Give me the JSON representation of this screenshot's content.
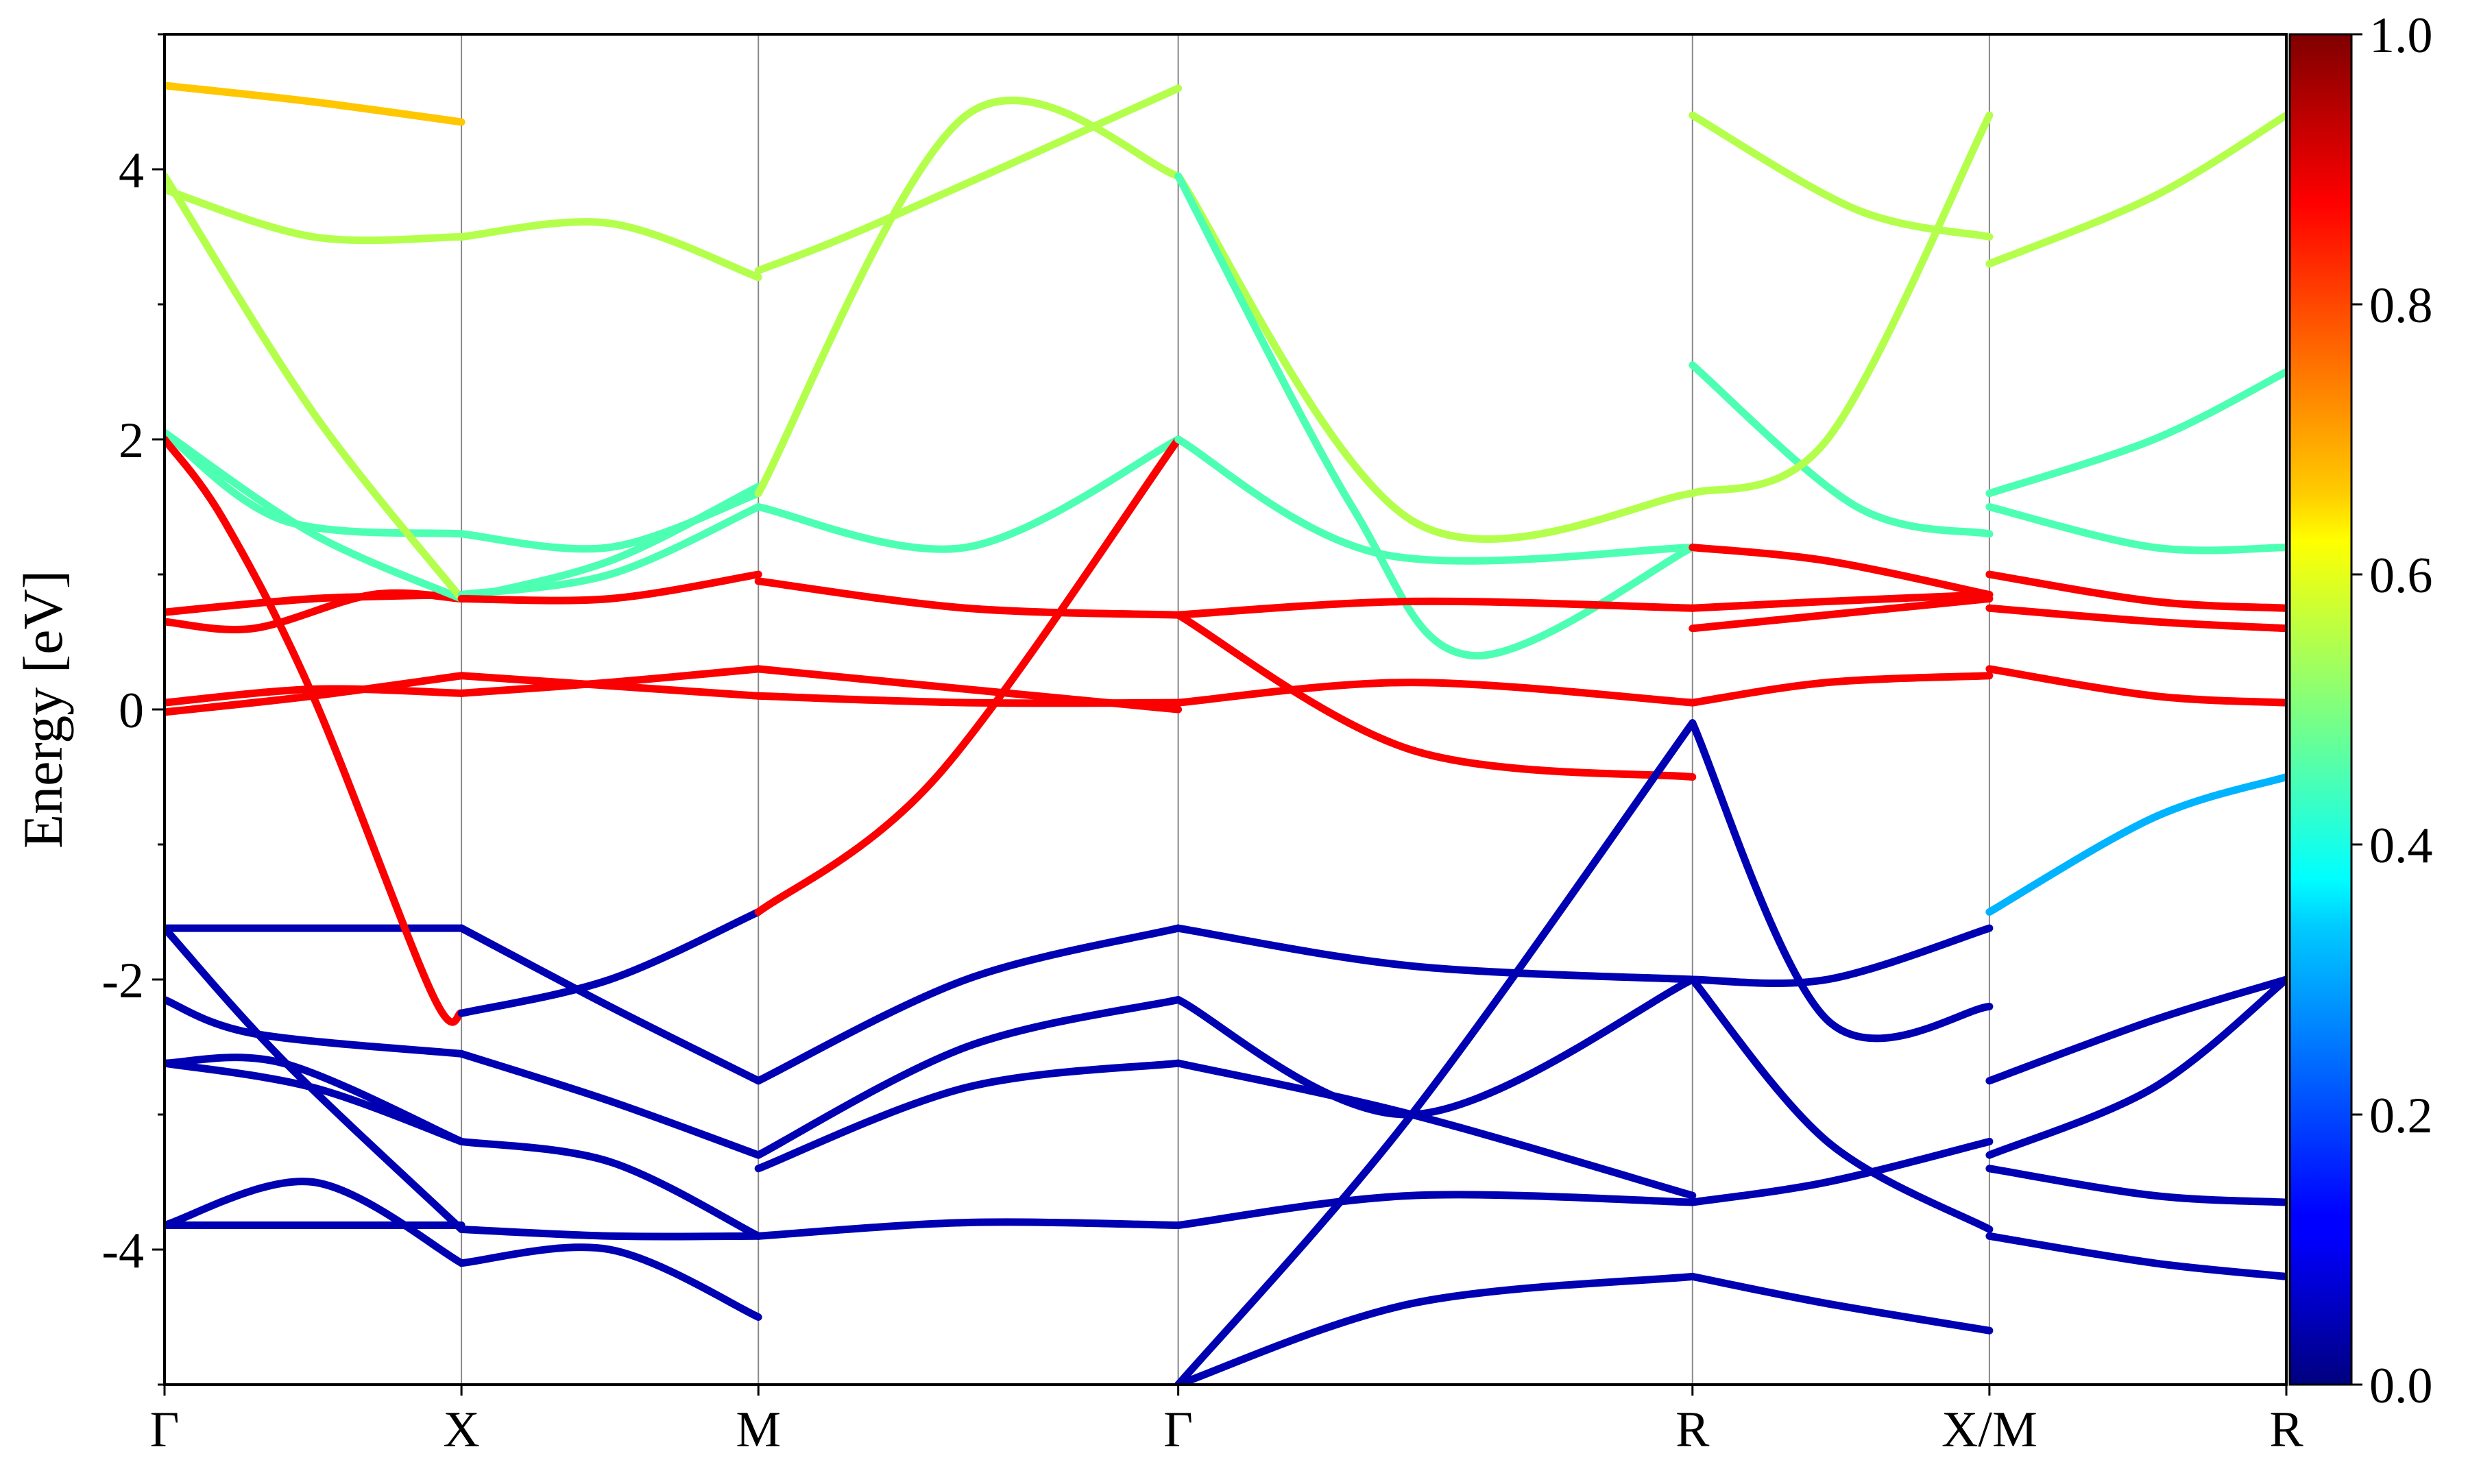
{
  "chart_data": {
    "type": "line",
    "title": "",
    "xlabel": "",
    "ylabel": "Energy [eV]",
    "ylim": [
      -5,
      5
    ],
    "y_ticks": [
      -4,
      -2,
      0,
      2,
      4
    ],
    "y_tick_labels": [
      "-4",
      "-2",
      "0",
      "2",
      "4"
    ],
    "x_path": {
      "labels": [
        "Γ",
        "X",
        "M",
        "Γ",
        "R",
        "X/M",
        "R"
      ],
      "positions": [
        0,
        0.5,
        1.0,
        1.707,
        2.573,
        3.073,
        3.573
      ]
    },
    "vertical_grid": true,
    "colorbar": {
      "colormap": "jet",
      "range": [
        0,
        1
      ],
      "ticks": [
        0.0,
        0.2,
        0.4,
        0.6,
        0.8,
        1.0
      ],
      "tick_labels": [
        "0.0",
        "0.2",
        "0.4",
        "0.6",
        "0.8",
        "1.0"
      ]
    },
    "series": [
      {
        "segment": "Γ-X",
        "x": [
          0,
          0.5
        ],
        "y": [
          -3.82,
          -3.82
        ]
      },
      {
        "segment": "Γ-X",
        "x": [
          0,
          0.25,
          0.5
        ],
        "y": [
          -3.82,
          -3.5,
          -4.1
        ]
      },
      {
        "segment": "Γ-X",
        "x": [
          0,
          0.2,
          0.5
        ],
        "y": [
          -2.62,
          -2.62,
          -3.2
        ]
      },
      {
        "segment": "Γ-X",
        "x": [
          0,
          0.25,
          0.5
        ],
        "y": [
          -2.62,
          -2.8,
          -3.2
        ]
      },
      {
        "segment": "Γ-X",
        "x": [
          0,
          0.15,
          0.5
        ],
        "y": [
          -2.15,
          -2.4,
          -2.55
        ]
      },
      {
        "segment": "Γ-X",
        "x": [
          0,
          0.5
        ],
        "y": [
          -1.62,
          -1.62
        ]
      },
      {
        "segment": "Γ-X",
        "x": [
          0,
          0.2,
          0.5
        ],
        "y": [
          -1.62,
          -2.6,
          -3.85
        ]
      },
      {
        "segment": "Γ-X",
        "x": [
          0,
          0.15,
          0.35,
          0.5
        ],
        "y": [
          0.65,
          0.6,
          0.85,
          0.82
        ]
      },
      {
        "segment": "Γ-X",
        "x": [
          0,
          0.25,
          0.5
        ],
        "y": [
          0.72,
          0.82,
          0.85
        ]
      },
      {
        "segment": "Γ-X",
        "x": [
          0,
          0.25,
          0.5
        ],
        "y": [
          0.05,
          0.15,
          0.12
        ]
      },
      {
        "segment": "Γ-X",
        "x": [
          0,
          0.25,
          0.5
        ],
        "y": [
          -0.02,
          0.1,
          0.25
        ]
      },
      {
        "segment": "Γ-X",
        "x": [
          0,
          0.2,
          0.5
        ],
        "y": [
          2.05,
          1.4,
          1.3
        ]
      },
      {
        "segment": "Γ-X",
        "x": [
          0,
          0.25,
          0.5
        ],
        "y": [
          2.05,
          1.3,
          0.82
        ]
      },
      {
        "segment": "Γ-X",
        "x": [
          0,
          0.25,
          0.5
        ],
        "y": [
          3.95,
          2.2,
          0.82
        ]
      },
      {
        "segment": "Γ-X",
        "x": [
          0,
          0.1,
          0.25,
          0.45,
          0.5
        ],
        "y": [
          2.0,
          1.4,
          0.1,
          -2.1,
          -2.25
        ]
      },
      {
        "segment": "Γ-X",
        "x": [
          0,
          0.25,
          0.5
        ],
        "y": [
          4.62,
          4.5,
          4.35
        ]
      },
      {
        "segment": "Γ-X",
        "x": [
          0,
          0.25,
          0.5
        ],
        "y": [
          3.85,
          3.5,
          3.5
        ]
      },
      {
        "segment": "X-M",
        "x": [
          0.5,
          0.75,
          1.0
        ],
        "y": [
          3.5,
          3.6,
          3.2
        ]
      },
      {
        "segment": "X-M",
        "x": [
          0.5,
          0.75,
          1.0
        ],
        "y": [
          1.3,
          1.2,
          1.6
        ]
      },
      {
        "segment": "X-M",
        "x": [
          0.5,
          0.75,
          1.0
        ],
        "y": [
          0.82,
          1.1,
          1.65
        ]
      },
      {
        "segment": "X-M",
        "x": [
          0.5,
          0.75,
          1.0
        ],
        "y": [
          0.85,
          1.0,
          1.5
        ]
      },
      {
        "segment": "X-M",
        "x": [
          0.5,
          0.75,
          1.0
        ],
        "y": [
          0.82,
          0.82,
          1.0
        ]
      },
      {
        "segment": "X-M",
        "x": [
          0.5,
          0.75,
          1.0
        ],
        "y": [
          0.12,
          0.2,
          0.3
        ]
      },
      {
        "segment": "X-M",
        "x": [
          0.5,
          1.0
        ],
        "y": [
          0.25,
          0.1
        ]
      },
      {
        "segment": "X-M",
        "x": [
          0.5,
          0.75,
          1.0
        ],
        "y": [
          -2.25,
          -2.0,
          -1.5
        ]
      },
      {
        "segment": "X-M",
        "x": [
          0.5,
          0.75,
          1.0
        ],
        "y": [
          -1.62,
          -2.2,
          -2.75
        ]
      },
      {
        "segment": "X-M",
        "x": [
          0.5,
          0.75,
          1.0
        ],
        "y": [
          -2.55,
          -2.9,
          -3.3
        ]
      },
      {
        "segment": "X-M",
        "x": [
          0.5,
          0.75,
          1.0
        ],
        "y": [
          -3.2,
          -3.35,
          -3.9
        ]
      },
      {
        "segment": "X-M",
        "x": [
          0.5,
          0.75,
          1.0
        ],
        "y": [
          -3.85,
          -3.9,
          -3.9
        ]
      },
      {
        "segment": "X-M",
        "x": [
          0.5,
          0.75,
          1.0
        ],
        "y": [
          -4.1,
          -4.0,
          -4.5
        ]
      },
      {
        "segment": "M-Γ",
        "x": [
          1.0,
          1.2,
          1.707
        ],
        "y": [
          3.25,
          3.6,
          4.6
        ]
      },
      {
        "segment": "M-Γ",
        "x": [
          1.0,
          1.35,
          1.707
        ],
        "y": [
          1.6,
          4.4,
          3.95
        ]
      },
      {
        "segment": "M-Γ",
        "x": [
          1.0,
          1.35,
          1.707
        ],
        "y": [
          1.5,
          1.2,
          2.0
        ]
      },
      {
        "segment": "M-Γ",
        "x": [
          1.0,
          1.35,
          1.707
        ],
        "y": [
          0.95,
          0.75,
          0.7
        ]
      },
      {
        "segment": "M-Γ",
        "x": [
          1.0,
          1.35,
          1.707
        ],
        "y": [
          0.1,
          0.05,
          0.05
        ]
      },
      {
        "segment": "M-Γ",
        "x": [
          1.0,
          1.35,
          1.707
        ],
        "y": [
          0.3,
          0.15,
          0.0
        ]
      },
      {
        "segment": "M-Γ",
        "x": [
          1.0,
          1.3,
          1.707
        ],
        "y": [
          -1.5,
          -0.5,
          2.0
        ]
      },
      {
        "segment": "M-Γ",
        "x": [
          1.0,
          1.35,
          1.707
        ],
        "y": [
          -2.75,
          -2.0,
          -1.62
        ]
      },
      {
        "segment": "M-Γ",
        "x": [
          1.0,
          1.35,
          1.707
        ],
        "y": [
          -3.3,
          -2.5,
          -2.15
        ]
      },
      {
        "segment": "M-Γ",
        "x": [
          1.0,
          1.35,
          1.707
        ],
        "y": [
          -3.4,
          -2.8,
          -2.62
        ]
      },
      {
        "segment": "M-Γ",
        "x": [
          1.0,
          1.35,
          1.707
        ],
        "y": [
          -3.9,
          -3.8,
          -3.82
        ]
      },
      {
        "segment": "Γ-R",
        "x": [
          1.707,
          2.1,
          2.573
        ],
        "y": [
          3.95,
          1.4,
          1.6
        ]
      },
      {
        "segment": "Γ-R",
        "x": [
          1.707,
          2.0,
          2.2,
          2.573
        ],
        "y": [
          3.95,
          1.5,
          0.4,
          1.2
        ]
      },
      {
        "segment": "Γ-R",
        "x": [
          1.707,
          2.05,
          2.573
        ],
        "y": [
          2.0,
          1.15,
          1.2
        ]
      },
      {
        "segment": "Γ-R",
        "x": [
          1.707,
          2.1,
          2.573
        ],
        "y": [
          0.7,
          0.8,
          0.75
        ]
      },
      {
        "segment": "Γ-R",
        "x": [
          1.707,
          2.1,
          2.573
        ],
        "y": [
          0.05,
          0.2,
          0.05
        ]
      },
      {
        "segment": "Γ-R",
        "x": [
          1.707,
          2.1,
          2.573
        ],
        "y": [
          0.7,
          -0.3,
          -0.5
        ]
      },
      {
        "segment": "Γ-R",
        "x": [
          1.707,
          2.1,
          2.573
        ],
        "y": [
          -1.62,
          -1.9,
          -2.0
        ]
      },
      {
        "segment": "Γ-R",
        "x": [
          1.707,
          2.1,
          2.573
        ],
        "y": [
          -2.15,
          -3.0,
          -2.0
        ]
      },
      {
        "segment": "Γ-R",
        "x": [
          1.707,
          2.1,
          2.573
        ],
        "y": [
          -2.62,
          -3.0,
          -3.6
        ]
      },
      {
        "segment": "Γ-R",
        "x": [
          1.707,
          2.1,
          2.573
        ],
        "y": [
          -3.82,
          -3.6,
          -3.65
        ]
      },
      {
        "segment": "Γ-R",
        "x": [
          1.707,
          2.1,
          2.573
        ],
        "y": [
          -5.0,
          -3.0,
          -0.1
        ]
      },
      {
        "segment": "Γ-R",
        "x": [
          1.707,
          2.1,
          2.573
        ],
        "y": [
          -5.0,
          -4.4,
          -4.2
        ]
      },
      {
        "segment": "R-X",
        "x": [
          2.573,
          2.8,
          3.073
        ],
        "y": [
          1.2,
          1.1,
          0.85
        ]
      },
      {
        "segment": "R-X",
        "x": [
          2.573,
          2.85,
          3.073
        ],
        "y": [
          2.55,
          1.5,
          1.3
        ]
      },
      {
        "segment": "R-X",
        "x": [
          2.573,
          2.8,
          3.073
        ],
        "y": [
          1.6,
          2.0,
          4.4
        ]
      },
      {
        "segment": "R-X",
        "x": [
          2.573,
          2.85,
          3.073
        ],
        "y": [
          4.4,
          3.7,
          3.5
        ]
      },
      {
        "segment": "R-X",
        "x": [
          2.573,
          2.8,
          3.073
        ],
        "y": [
          0.75,
          0.8,
          0.85
        ]
      },
      {
        "segment": "R-X",
        "x": [
          2.573,
          2.8,
          3.073
        ],
        "y": [
          0.6,
          0.7,
          0.82
        ]
      },
      {
        "segment": "R-X",
        "x": [
          2.573,
          2.8,
          3.073
        ],
        "y": [
          0.05,
          0.2,
          0.25
        ]
      },
      {
        "segment": "R-X",
        "x": [
          2.573,
          2.8,
          3.073
        ],
        "y": [
          -0.1,
          -2.3,
          -2.2
        ]
      },
      {
        "segment": "R-X",
        "x": [
          2.573,
          2.8,
          3.073
        ],
        "y": [
          -2.0,
          -2.0,
          -1.62
        ]
      },
      {
        "segment": "R-X",
        "x": [
          2.573,
          2.8,
          3.073
        ],
        "y": [
          -2.0,
          -3.2,
          -3.85
        ]
      },
      {
        "segment": "R-X",
        "x": [
          2.573,
          2.8,
          3.073
        ],
        "y": [
          -3.65,
          -3.5,
          -3.2
        ]
      },
      {
        "segment": "R-X",
        "x": [
          2.573,
          2.8,
          3.073
        ],
        "y": [
          -4.2,
          -4.4,
          -4.6
        ]
      },
      {
        "segment": "M-R",
        "x": [
          3.073,
          3.35,
          3.573
        ],
        "y": [
          3.3,
          3.8,
          4.4
        ]
      },
      {
        "segment": "M-R",
        "x": [
          3.073,
          3.35,
          3.573
        ],
        "y": [
          1.6,
          2.0,
          2.5
        ]
      },
      {
        "segment": "M-R",
        "x": [
          3.073,
          3.35,
          3.573
        ],
        "y": [
          1.5,
          1.2,
          1.2
        ]
      },
      {
        "segment": "M-R",
        "x": [
          3.073,
          3.35,
          3.573
        ],
        "y": [
          1.0,
          0.8,
          0.75
        ]
      },
      {
        "segment": "M-R",
        "x": [
          3.073,
          3.35,
          3.573
        ],
        "y": [
          0.75,
          0.65,
          0.6
        ]
      },
      {
        "segment": "M-R",
        "x": [
          3.073,
          3.35,
          3.573
        ],
        "y": [
          0.3,
          0.1,
          0.05
        ]
      },
      {
        "segment": "M-R",
        "x": [
          3.073,
          3.35,
          3.573
        ],
        "y": [
          -1.5,
          -0.8,
          -0.5
        ]
      },
      {
        "segment": "M-R",
        "x": [
          3.073,
          3.35,
          3.573
        ],
        "y": [
          -2.75,
          -2.3,
          -2.0
        ]
      },
      {
        "segment": "M-R",
        "x": [
          3.073,
          3.35,
          3.573
        ],
        "y": [
          -3.3,
          -2.8,
          -2.0
        ]
      },
      {
        "segment": "M-R",
        "x": [
          3.073,
          3.35,
          3.573
        ],
        "y": [
          -3.4,
          -3.6,
          -3.65
        ]
      },
      {
        "segment": "M-R",
        "x": [
          3.073,
          3.35,
          3.573
        ],
        "y": [
          -3.9,
          -4.1,
          -4.2
        ]
      }
    ]
  }
}
